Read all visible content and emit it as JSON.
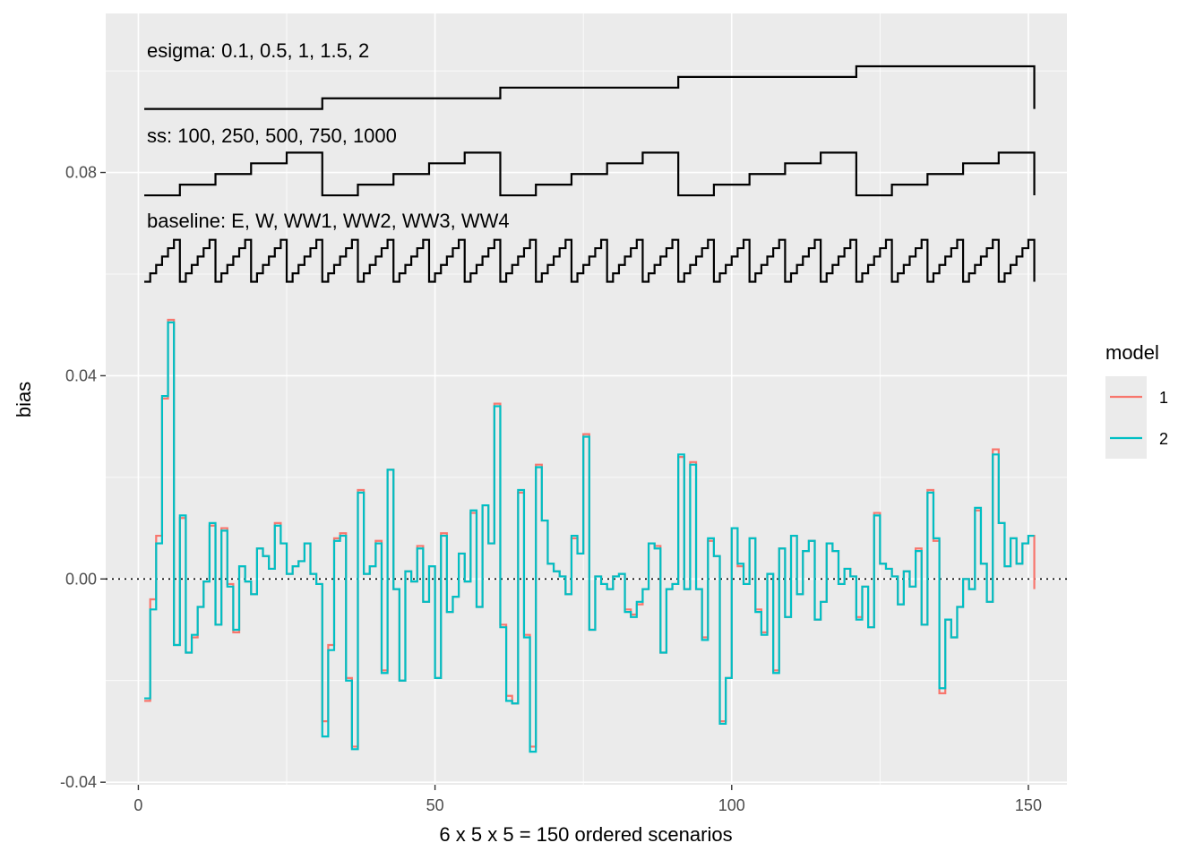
{
  "chart_data": {
    "type": "line",
    "title": "",
    "xlabel": "6 x 5 x 5 = 150 ordered scenarios",
    "ylabel": "bias",
    "xlim": [
      -5.5,
      156.5
    ],
    "ylim": [
      -0.0405,
      0.1113
    ],
    "x_ticks": [
      0,
      50,
      100,
      150
    ],
    "y_ticks": [
      -0.04,
      0.0,
      0.04,
      0.08
    ],
    "x_tick_labels": [
      "0",
      "50",
      "100",
      "150"
    ],
    "y_tick_labels": [
      "-0.04",
      "0.00",
      "0.04",
      "0.08"
    ],
    "grid": true,
    "legend": {
      "title": "model",
      "placement": "right",
      "entries": [
        {
          "label": "1",
          "color": "#F8766D"
        },
        {
          "label": "2",
          "color": "#00BFC4"
        }
      ]
    },
    "reference_line": {
      "y": 0.0,
      "style": "dotted",
      "color": "#000000"
    },
    "annotations": [
      {
        "text": "esigma: 0.1, 0.5, 1, 1.5, 2",
        "x": 1,
        "y": 0.1055
      },
      {
        "text": "ss: 100, 250, 500, 750, 1000",
        "x": 1,
        "y": 0.0875
      },
      {
        "text": "baseline: E, W, WW1, WW2, WW3, WW4",
        "x": 1,
        "y": 0.0705
      }
    ],
    "factor_lines": [
      {
        "name": "esigma",
        "levels": 5,
        "block": 30,
        "base": 0.0925,
        "step": 0.0021
      },
      {
        "name": "ss",
        "levels": 5,
        "block": 6,
        "base": 0.0755,
        "step": 0.0021
      },
      {
        "name": "baseline",
        "levels": 6,
        "block": 1,
        "base": 0.0585,
        "step": 0.00165
      }
    ],
    "series": [
      {
        "name": "1",
        "color": "#F8766D",
        "values": [
          -0.024,
          -0.004,
          0.0085,
          0.0355,
          0.051,
          -0.013,
          0.012,
          -0.0145,
          -0.0115,
          -0.0055,
          -0.0005,
          0.0105,
          -0.009,
          0.01,
          -0.001,
          -0.0105,
          0.0025,
          -0.0005,
          -0.003,
          0.006,
          0.0045,
          0.002,
          0.011,
          0.007,
          0.001,
          0.0025,
          0.0035,
          0.007,
          0.001,
          -0.001,
          -0.028,
          -0.013,
          0.008,
          0.009,
          -0.0195,
          -0.033,
          0.0175,
          0.001,
          0.0025,
          0.0075,
          -0.018,
          0.0215,
          -0.002,
          -0.02,
          0.0015,
          -0.0005,
          0.0065,
          -0.0045,
          0.0025,
          -0.0195,
          0.009,
          -0.0065,
          -0.0035,
          0.005,
          -0.0005,
          0.013,
          -0.0055,
          0.0145,
          0.007,
          0.0345,
          -0.009,
          -0.023,
          -0.0245,
          0.017,
          -0.011,
          -0.033,
          0.0225,
          0.0115,
          0.003,
          0.0015,
          0.0005,
          -0.003,
          0.008,
          0.005,
          0.0285,
          -0.01,
          0.0005,
          -0.001,
          -0.002,
          0.0005,
          0.001,
          -0.006,
          -0.007,
          -0.005,
          -0.002,
          0.007,
          0.0065,
          -0.0145,
          -0.002,
          -0.001,
          0.024,
          -0.002,
          0.023,
          -0.002,
          -0.0115,
          0.0075,
          0.0045,
          -0.028,
          -0.0195,
          0.01,
          0.0025,
          -0.001,
          0.008,
          -0.006,
          -0.0105,
          0.001,
          -0.018,
          0.006,
          -0.0075,
          0.0085,
          -0.003,
          0.0055,
          0.0075,
          -0.008,
          -0.0045,
          0.007,
          0.0055,
          -0.001,
          0.002,
          0.0005,
          -0.0075,
          -0.0015,
          -0.0095,
          0.013,
          0.003,
          0.002,
          0.0005,
          -0.005,
          0.0015,
          -0.0015,
          0.006,
          -0.009,
          0.0175,
          0.0075,
          -0.0225,
          -0.008,
          -0.0115,
          -0.0055,
          0.0,
          -0.002,
          0.0135,
          0.003,
          -0.0045,
          0.0255,
          0.011,
          0.0025,
          0.008,
          0.003,
          0.007,
          0.0085,
          -0.002
        ]
      },
      {
        "name": "2",
        "color": "#00BFC4",
        "values": [
          -0.0235,
          -0.006,
          0.007,
          0.036,
          0.0505,
          -0.013,
          0.0125,
          -0.0145,
          -0.011,
          -0.0055,
          -0.0005,
          0.011,
          -0.009,
          0.0095,
          -0.0015,
          -0.01,
          0.0025,
          -0.0005,
          -0.003,
          0.006,
          0.0045,
          0.002,
          0.0105,
          0.007,
          0.001,
          0.0025,
          0.0035,
          0.007,
          0.001,
          -0.001,
          -0.031,
          -0.014,
          0.0075,
          0.0085,
          -0.02,
          -0.0335,
          0.017,
          0.001,
          0.0025,
          0.007,
          -0.0185,
          0.0215,
          -0.002,
          -0.02,
          0.0015,
          -0.0005,
          0.006,
          -0.0045,
          0.0025,
          -0.0195,
          0.0085,
          -0.0065,
          -0.0035,
          0.005,
          -0.0005,
          0.0135,
          -0.0055,
          0.0145,
          0.007,
          0.034,
          -0.0095,
          -0.024,
          -0.0245,
          0.0175,
          -0.0115,
          -0.034,
          0.022,
          0.0115,
          0.003,
          0.0015,
          0.0005,
          -0.003,
          0.0085,
          0.005,
          0.028,
          -0.01,
          0.0005,
          -0.001,
          -0.002,
          0.0005,
          0.001,
          -0.0065,
          -0.0075,
          -0.0045,
          -0.002,
          0.007,
          0.006,
          -0.0145,
          -0.002,
          -0.001,
          0.0245,
          -0.002,
          0.0225,
          -0.002,
          -0.012,
          0.008,
          0.0045,
          -0.0285,
          -0.0195,
          0.01,
          0.003,
          -0.001,
          0.008,
          -0.0065,
          -0.011,
          0.001,
          -0.0185,
          0.006,
          -0.0075,
          0.0085,
          -0.003,
          0.0055,
          0.0075,
          -0.008,
          -0.0045,
          0.007,
          0.0055,
          -0.001,
          0.002,
          0.0005,
          -0.008,
          -0.0015,
          -0.0095,
          0.0125,
          0.003,
          0.002,
          0.0005,
          -0.005,
          0.0015,
          -0.0015,
          0.0055,
          -0.009,
          0.017,
          0.008,
          -0.0215,
          -0.008,
          -0.0115,
          -0.0055,
          0.0,
          -0.002,
          0.014,
          0.003,
          -0.0045,
          0.0245,
          0.011,
          0.0025,
          0.008,
          0.003,
          0.007,
          0.0085,
          0.0085
        ]
      }
    ]
  }
}
